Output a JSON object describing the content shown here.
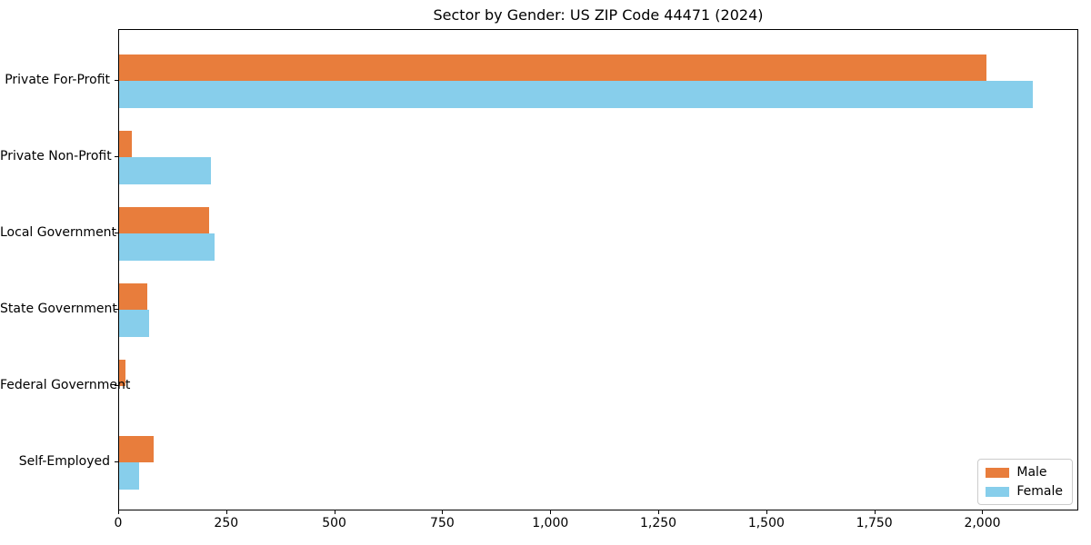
{
  "chart_data": {
    "type": "bar",
    "orientation": "horizontal",
    "title": "Sector by Gender: US ZIP Code 44471 (2024)",
    "categories": [
      "Private For-Profit",
      "Private Non-Profit",
      "Local Government",
      "State Government",
      "Federal Government",
      "Self-Employed"
    ],
    "series": [
      {
        "name": "Male",
        "color": "#e87d3c",
        "values": [
          2008,
          30,
          208,
          65,
          15,
          80
        ]
      },
      {
        "name": "Female",
        "color": "#87ceeb",
        "values": [
          2115,
          213,
          220,
          70,
          0,
          47
        ]
      }
    ],
    "xlim": [
      0,
      2222
    ],
    "x_ticks": [
      0,
      250,
      500,
      750,
      1000,
      1250,
      1500,
      1750,
      2000
    ],
    "x_tick_labels": [
      "0",
      "250",
      "500",
      "750",
      "1,000",
      "1,250",
      "1,500",
      "1,750",
      "2,000"
    ],
    "ylabel": "",
    "xlabel": "",
    "grid": false,
    "legend": {
      "position": "lower-right",
      "entries": [
        "Male",
        "Female"
      ]
    },
    "colors": {
      "male": "#e87d3c",
      "female": "#87ceeb",
      "axis": "#000000",
      "legend_border": "#cccccc",
      "background": "#ffffff"
    }
  }
}
